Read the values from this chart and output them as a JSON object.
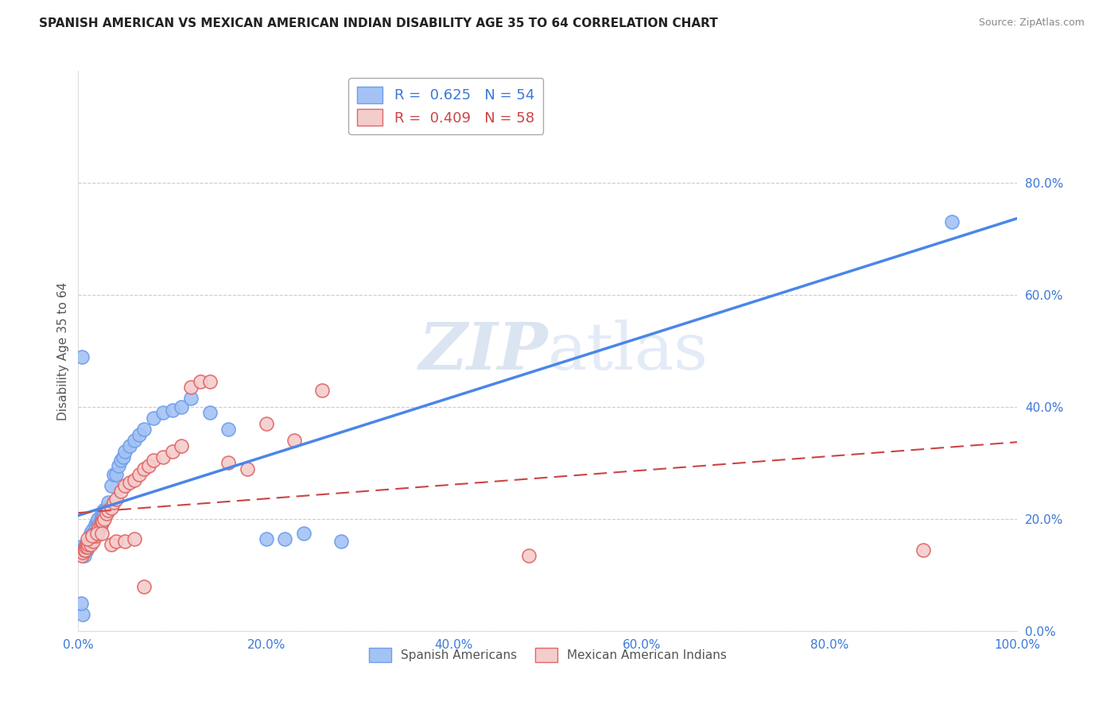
{
  "title": "SPANISH AMERICAN VS MEXICAN AMERICAN INDIAN DISABILITY AGE 35 TO 64 CORRELATION CHART",
  "source": "Source: ZipAtlas.com",
  "ylabel": "Disability Age 35 to 64",
  "xlim": [
    0,
    1.0
  ],
  "ylim": [
    0,
    1.0
  ],
  "xticks": [
    0.0,
    0.2,
    0.4,
    0.6,
    0.8,
    1.0
  ],
  "yticks": [
    0.0,
    0.2,
    0.4,
    0.6,
    0.8
  ],
  "xtick_labels": [
    "0.0%",
    "20.0%",
    "40.0%",
    "60.0%",
    "80.0%",
    "100.0%"
  ],
  "ytick_labels": [
    "0.0%",
    "20.0%",
    "40.0%",
    "60.0%",
    "80.0%"
  ],
  "legend_r1": "R =  0.625",
  "legend_n1": "N = 54",
  "legend_r2": "R =  0.409",
  "legend_n2": "N = 58",
  "blue_fill": "#a4c2f4",
  "pink_fill": "#f4cccc",
  "blue_edge": "#6d9eeb",
  "pink_edge": "#e06666",
  "blue_line": "#4a86e8",
  "pink_line": "#cc4444",
  "watermark_color": "#d0dff5",
  "blue_scatter_x": [
    0.002,
    0.003,
    0.004,
    0.005,
    0.006,
    0.007,
    0.008,
    0.009,
    0.01,
    0.011,
    0.012,
    0.013,
    0.014,
    0.015,
    0.016,
    0.017,
    0.018,
    0.019,
    0.02,
    0.021,
    0.022,
    0.023,
    0.024,
    0.025,
    0.026,
    0.027,
    0.028,
    0.03,
    0.032,
    0.035,
    0.038,
    0.04,
    0.043,
    0.045,
    0.048,
    0.05,
    0.055,
    0.06,
    0.065,
    0.07,
    0.08,
    0.09,
    0.1,
    0.11,
    0.12,
    0.14,
    0.16,
    0.2,
    0.24,
    0.28,
    0.003,
    0.004,
    0.93,
    0.22
  ],
  "blue_scatter_y": [
    0.15,
    0.14,
    0.145,
    0.03,
    0.135,
    0.145,
    0.155,
    0.145,
    0.15,
    0.155,
    0.16,
    0.175,
    0.16,
    0.18,
    0.175,
    0.17,
    0.19,
    0.185,
    0.195,
    0.2,
    0.19,
    0.185,
    0.2,
    0.21,
    0.205,
    0.215,
    0.21,
    0.22,
    0.23,
    0.26,
    0.28,
    0.28,
    0.295,
    0.305,
    0.31,
    0.32,
    0.33,
    0.34,
    0.35,
    0.36,
    0.38,
    0.39,
    0.395,
    0.4,
    0.415,
    0.39,
    0.36,
    0.165,
    0.175,
    0.16,
    0.05,
    0.49,
    0.73,
    0.165
  ],
  "pink_scatter_x": [
    0.003,
    0.004,
    0.005,
    0.006,
    0.007,
    0.008,
    0.009,
    0.01,
    0.011,
    0.012,
    0.013,
    0.014,
    0.015,
    0.016,
    0.017,
    0.018,
    0.019,
    0.02,
    0.022,
    0.024,
    0.025,
    0.026,
    0.028,
    0.03,
    0.032,
    0.035,
    0.038,
    0.04,
    0.045,
    0.05,
    0.055,
    0.06,
    0.065,
    0.07,
    0.075,
    0.08,
    0.09,
    0.1,
    0.11,
    0.12,
    0.13,
    0.14,
    0.16,
    0.18,
    0.2,
    0.23,
    0.26,
    0.01,
    0.015,
    0.02,
    0.025,
    0.48,
    0.9,
    0.035,
    0.04,
    0.05,
    0.06,
    0.07
  ],
  "pink_scatter_y": [
    0.14,
    0.135,
    0.14,
    0.145,
    0.145,
    0.15,
    0.155,
    0.15,
    0.155,
    0.16,
    0.155,
    0.165,
    0.165,
    0.16,
    0.17,
    0.175,
    0.17,
    0.175,
    0.185,
    0.19,
    0.195,
    0.195,
    0.2,
    0.21,
    0.215,
    0.22,
    0.23,
    0.235,
    0.25,
    0.26,
    0.265,
    0.27,
    0.28,
    0.29,
    0.295,
    0.305,
    0.31,
    0.32,
    0.33,
    0.435,
    0.445,
    0.445,
    0.3,
    0.29,
    0.37,
    0.34,
    0.43,
    0.165,
    0.17,
    0.175,
    0.175,
    0.135,
    0.145,
    0.155,
    0.16,
    0.16,
    0.165,
    0.08
  ]
}
